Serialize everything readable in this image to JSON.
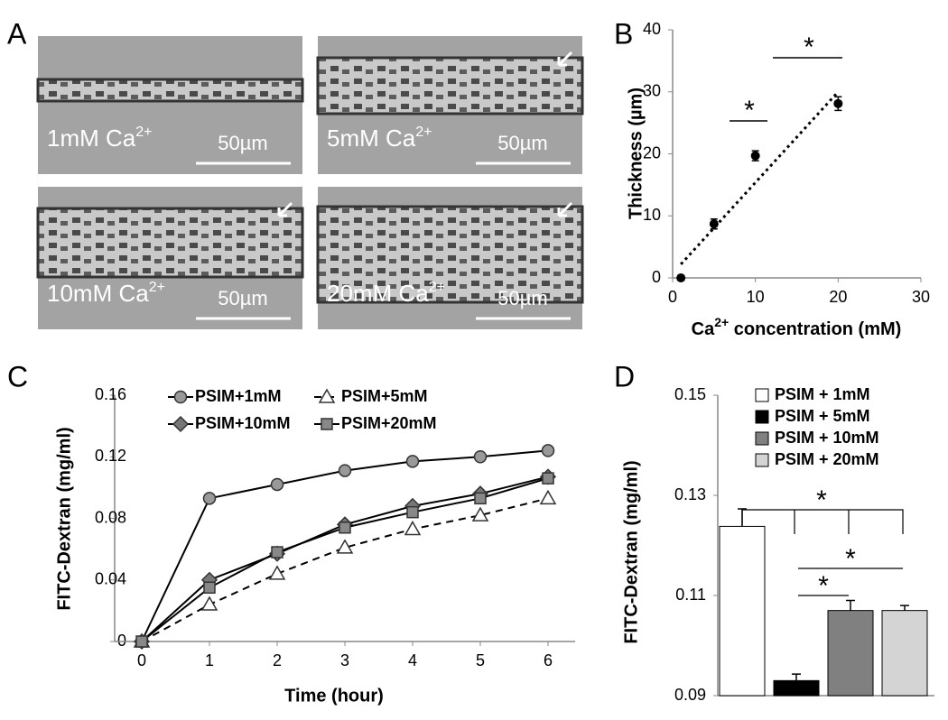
{
  "panel_labels": [
    "A",
    "B",
    "C",
    "D"
  ],
  "images": [
    {
      "label": "1mM Ca",
      "label_sup": "2+",
      "scale_bar": "50µm"
    },
    {
      "label": "5mM Ca",
      "label_sup": "2+",
      "scale_bar": "50µm"
    },
    {
      "label": "10mM Ca",
      "label_sup": "2+",
      "scale_bar": "50µm"
    },
    {
      "label": "20mM Ca",
      "label_sup": "2+",
      "scale_bar": "50µm"
    }
  ],
  "chart_data": [
    {
      "type": "scatter",
      "y_label": "Thickness (µm)",
      "x_label": "Ca",
      "x_label_sup": "2+",
      "x_label_rest": " concentration (mM)",
      "x": [
        1,
        5,
        10,
        20
      ],
      "values": [
        0,
        8.7,
        19.7,
        28.1
      ],
      "errors": [
        0.4,
        0.8,
        0.8,
        1.1
      ],
      "color": "#000000",
      "trendline": {
        "x": [
          1,
          20
        ],
        "values": [
          2.2,
          30
        ]
      },
      "significance": [
        "*",
        "*"
      ],
      "xlim": [
        0,
        30
      ],
      "xticks": [
        0,
        10,
        20,
        30
      ],
      "ylim": [
        0,
        40
      ],
      "yticks": [
        0,
        10,
        20,
        30,
        40
      ]
    },
    {
      "type": "line",
      "x_label": "Time (hour)",
      "y_label": "FITC-Dextran (mg/ml)",
      "x": [
        0,
        1,
        2,
        3,
        4,
        5,
        6
      ],
      "series": [
        {
          "name": "PSIM+1mM",
          "color": "#999999",
          "marker": "circle",
          "line_style": "solid",
          "values": [
            0,
            0.093,
            0.102,
            0.111,
            0.117,
            0.12,
            0.124
          ]
        },
        {
          "name": "PSIM+5mM",
          "color": "#ffffff",
          "marker": "triangle",
          "line_style": "dashed",
          "values": [
            0,
            0.024,
            0.044,
            0.061,
            0.073,
            0.082,
            0.093
          ]
        },
        {
          "name": "PSIM+10mM",
          "color": "#777777",
          "marker": "diamond",
          "line_style": "solid",
          "values": [
            0,
            0.04,
            0.057,
            0.076,
            0.088,
            0.096,
            0.107
          ]
        },
        {
          "name": "PSIM+20mM",
          "color": "#888888",
          "marker": "square",
          "line_style": "solid",
          "values": [
            0,
            0.035,
            0.058,
            0.074,
            0.084,
            0.093,
            0.106
          ]
        }
      ],
      "xlim": [
        -0.4,
        6.4
      ],
      "xticks": [
        0,
        1,
        2,
        3,
        4,
        5,
        6
      ],
      "ylim": [
        0,
        0.16
      ],
      "yticks": [
        0,
        0.04,
        0.08,
        0.12,
        0.16
      ]
    },
    {
      "type": "bar",
      "y_label": "FITC-Dextran (mg/ml)",
      "series": [
        {
          "name": "PSIM + 1mM",
          "color": "#ffffff",
          "values": [
            0.1238
          ],
          "errors": [
            0.0035
          ]
        },
        {
          "name": "PSIM + 5mM",
          "color": "#000000",
          "values": [
            0.093
          ],
          "errors": [
            0.0013
          ]
        },
        {
          "name": "PSIM + 10mM",
          "color": "#808080",
          "values": [
            0.107
          ],
          "errors": [
            0.002
          ]
        },
        {
          "name": "PSIM + 20mM",
          "color": "#d4d4d4",
          "values": [
            0.107
          ],
          "errors": [
            0.001
          ]
        }
      ],
      "significance": [
        "*",
        "*",
        "*"
      ],
      "ylim": [
        0.09,
        0.15
      ],
      "yticks": [
        0.09,
        0.11,
        0.13,
        0.15
      ]
    }
  ]
}
